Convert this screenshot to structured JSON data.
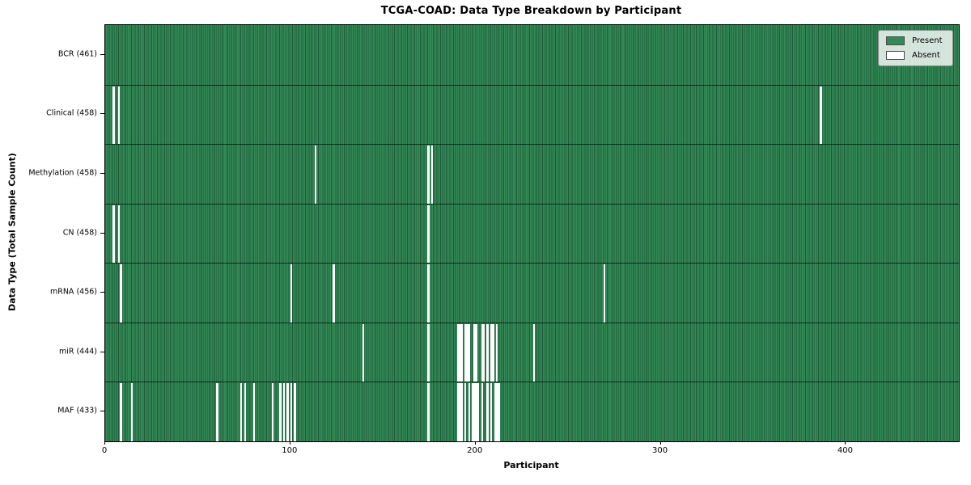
{
  "title": "TCGA-COAD: Data Type Breakdown by Participant",
  "xlabel": "Participant",
  "ylabel": "Data Type (Total Sample Count)",
  "legend": {
    "present_label": "Present",
    "absent_label": "Absent"
  },
  "colors": {
    "present": "#348a57",
    "present_edge": "#1d5b38",
    "absent": "#ffffff",
    "frame": "#000000",
    "legend_bg": "rgba(255,255,255,0.8)"
  },
  "chart_data": {
    "type": "heatmap",
    "title": "TCGA-COAD: Data Type Breakdown by Participant",
    "xlabel": "Participant",
    "ylabel": "Data Type (Total Sample Count)",
    "xlim": [
      0,
      461
    ],
    "x_ticks": [
      0,
      100,
      200,
      300,
      400
    ],
    "grid": false,
    "legend_position": "upper right",
    "legend_entries": [
      {
        "label": "Present",
        "color": "#348a57"
      },
      {
        "label": "Absent",
        "color": "#ffffff"
      }
    ],
    "total_participants": 461,
    "rows": [
      {
        "label": "BCR (461)",
        "data_type": "BCR",
        "count": 461,
        "absent_participants": []
      },
      {
        "label": "Clinical (458)",
        "data_type": "Clinical",
        "count": 458,
        "absent_participants": [
          4,
          7,
          386
        ]
      },
      {
        "label": "Methylation (458)",
        "data_type": "Methylation",
        "count": 458,
        "absent_participants": [
          113,
          174,
          176
        ]
      },
      {
        "label": "CN (458)",
        "data_type": "CN",
        "count": 458,
        "absent_participants": [
          4,
          7,
          174
        ]
      },
      {
        "label": "mRNA (456)",
        "data_type": "mRNA",
        "count": 456,
        "absent_participants": [
          8,
          100,
          123,
          174,
          269
        ]
      },
      {
        "label": "miR (444)",
        "data_type": "miR",
        "count": 444,
        "absent_participants": [
          139,
          174,
          190,
          191,
          192,
          194,
          195,
          196,
          199,
          200,
          203,
          204,
          206,
          208,
          209,
          211,
          231
        ]
      },
      {
        "label": "MAF (433)",
        "data_type": "MAF",
        "count": 433,
        "absent_participants": [
          8,
          14,
          60,
          73,
          75,
          80,
          90,
          94,
          96,
          98,
          100,
          102,
          174,
          190,
          191,
          192,
          194,
          196,
          198,
          199,
          200,
          201,
          203,
          206,
          208,
          210,
          211,
          212
        ]
      }
    ]
  }
}
